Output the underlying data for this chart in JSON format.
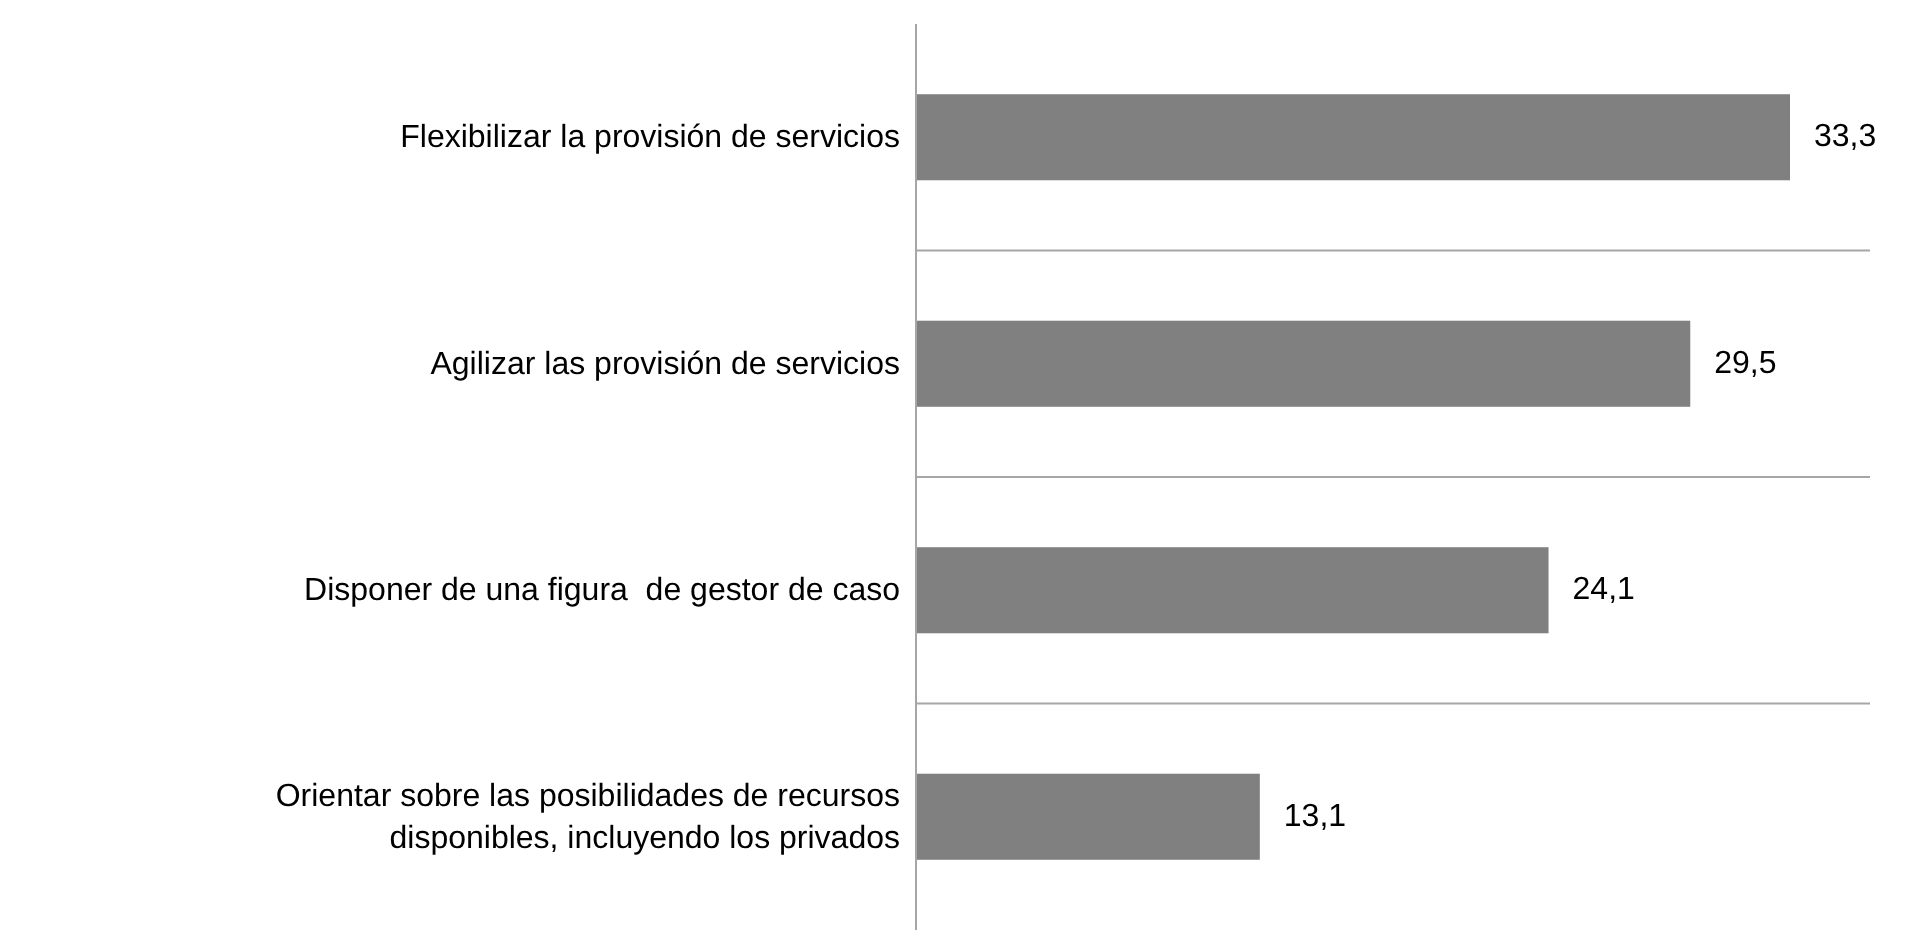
{
  "chart_data": {
    "type": "bar",
    "orientation": "horizontal",
    "categories": [
      "Flexibilizar la provisión de servicios",
      "Agilizar las provisión de servicios",
      "Disponer de una figura  de gestor de caso",
      "Orientar sobre las posibilidades de recursos disponibles, incluyendo los privados"
    ],
    "values": [
      33.3,
      29.5,
      24.1,
      13.1
    ],
    "value_labels": [
      "33,3",
      "29,5",
      "24,1",
      "13,1"
    ],
    "color": "#808080",
    "grid": "y"
  }
}
